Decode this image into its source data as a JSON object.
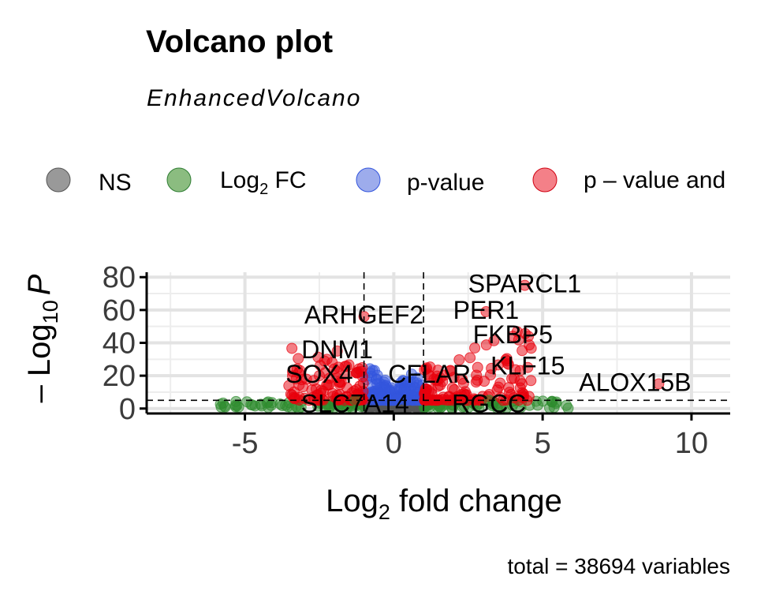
{
  "chart_data": {
    "type": "scatter",
    "title": "Volcano plot",
    "subtitle": "EnhancedVolcano",
    "xlabel_base": "Log",
    "xlabel_sub": "2",
    "xlabel_rest": " fold change",
    "ylabel_prefix": "– Log",
    "ylabel_sub": "10",
    "ylabel_var": "P",
    "caption": "total = 38694 variables",
    "xlim": [
      -8.3,
      11.3
    ],
    "ylim": [
      -3,
      83
    ],
    "x_ticks": [
      -5,
      0,
      5,
      10
    ],
    "x_tick_labels": [
      "-5",
      "0",
      "5",
      "10"
    ],
    "y_ticks": [
      0,
      20,
      40,
      60,
      80
    ],
    "y_tick_labels": [
      "0",
      "20",
      "40",
      "60",
      "80"
    ],
    "fc_cutoff": 1,
    "p_cutoff_log10": 5,
    "grid": true,
    "legend_position": "top",
    "legend": [
      {
        "key": "ns",
        "label": "NS",
        "color": "#808080"
      },
      {
        "key": "fc",
        "label_base": "Log",
        "label_sub": "2",
        "label_rest": " FC",
        "color": "#5aa04a"
      },
      {
        "key": "p",
        "label": "p-value",
        "color": "#5b74e0"
      },
      {
        "key": "both",
        "label": "p – value and",
        "color": "#f04a55"
      }
    ],
    "colors": {
      "ns": "#555555",
      "fc": "#2e8b2e",
      "p": "#3355dd",
      "both": "#e8000b"
    },
    "labeled_genes": [
      {
        "gene": "SPARCL1",
        "x": 4.4,
        "y": 75,
        "group": "both"
      },
      {
        "gene": "PER1",
        "x": 3.1,
        "y": 59,
        "group": "both"
      },
      {
        "gene": "ARHGEF2",
        "x": -1.0,
        "y": 56,
        "group": "both"
      },
      {
        "gene": "FKBP5",
        "x": 4.0,
        "y": 44,
        "group": "both"
      },
      {
        "gene": "DNM1",
        "x": -1.9,
        "y": 35,
        "group": "both"
      },
      {
        "gene": "KLF15",
        "x": 4.5,
        "y": 25,
        "group": "both"
      },
      {
        "gene": "SOX4",
        "x": -2.5,
        "y": 20,
        "group": "both"
      },
      {
        "gene": "CFLAR",
        "x": 1.2,
        "y": 20,
        "group": "both"
      },
      {
        "gene": "ALOX15B",
        "x": 8.9,
        "y": 15,
        "group": "both"
      },
      {
        "gene": "SLC7A14",
        "x": -1.3,
        "y": 5,
        "group": "fc"
      },
      {
        "gene": "RGCC",
        "x": 3.2,
        "y": 5,
        "group": "fc"
      }
    ]
  }
}
